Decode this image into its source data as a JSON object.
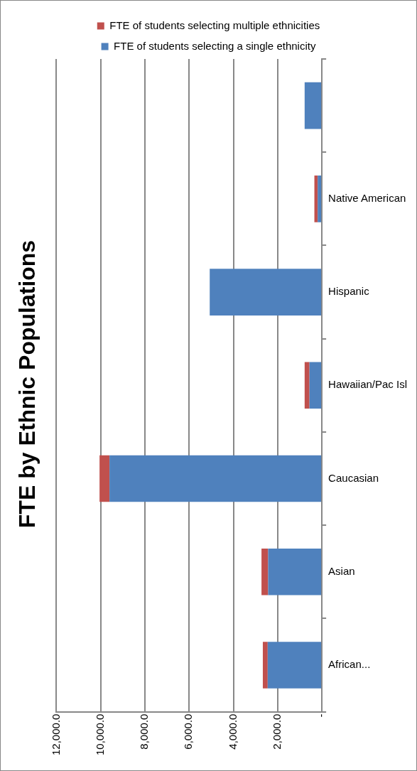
{
  "chart_data": {
    "type": "bar",
    "title": "FTE by Ethnic Populations",
    "stacked": true,
    "orientation": "horizontal",
    "categories": [
      null,
      "Native American",
      "Hispanic",
      "Hawaiian/Pac Isl",
      "Caucasian",
      "Asian",
      "African..."
    ],
    "series": [
      {
        "name": "FTE of students selecting a single ethnicity",
        "color": "#4f81bd",
        "values": [
          780,
          190,
          5070,
          560,
          9600,
          2430,
          2450
        ]
      },
      {
        "name": "FTE of students selecting multiple ethnicities",
        "color": "#c0504d",
        "values": [
          0,
          150,
          0,
          220,
          450,
          300,
          220
        ]
      }
    ],
    "xlim": [
      12000,
      0
    ],
    "xticks": [
      {
        "value": 12000,
        "label": "12,000.0"
      },
      {
        "value": 10000,
        "label": "10,000.0"
      },
      {
        "value": 8000,
        "label": "8,000.0"
      },
      {
        "value": 6000,
        "label": "6,000.0"
      },
      {
        "value": 4000,
        "label": "4,000.0"
      },
      {
        "value": 2000,
        "label": "2,000.0"
      },
      {
        "value": 0,
        "label": "-"
      }
    ],
    "grid": "x",
    "legend": "top"
  }
}
